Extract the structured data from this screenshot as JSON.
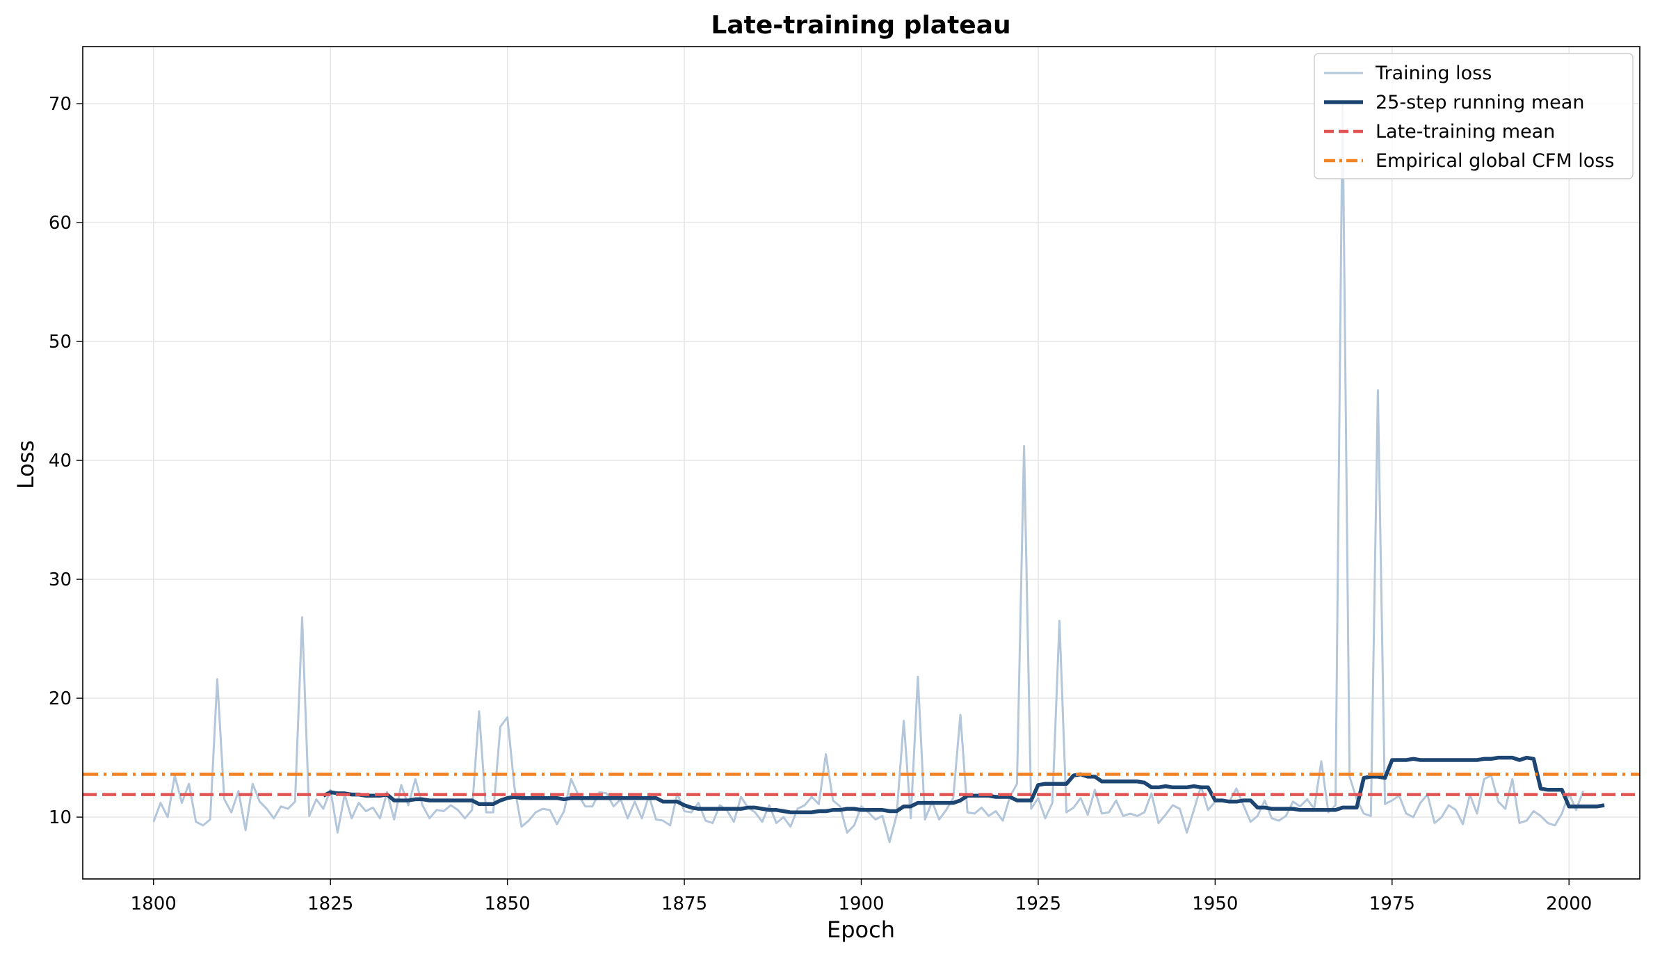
{
  "chart_data": {
    "type": "line",
    "title": "Late-training plateau",
    "xlabel": "Epoch",
    "ylabel": "Loss",
    "xlim": [
      1790,
      2010
    ],
    "ylim": [
      4.8,
      74.8
    ],
    "xticks": [
      1800,
      1825,
      1850,
      1875,
      1900,
      1925,
      1950,
      1975,
      2000
    ],
    "yticks": [
      10,
      20,
      30,
      40,
      50,
      60,
      70
    ],
    "grid": true,
    "legend_position": "top-right",
    "x_start": 1800,
    "series": [
      {
        "name": "Training loss",
        "color": "#b4c6da",
        "style": "solid",
        "values": [
          9.6,
          11.2,
          10.0,
          13.5,
          11.2,
          12.8,
          9.6,
          9.3,
          9.8,
          21.6,
          11.5,
          10.4,
          12.2,
          8.9,
          12.8,
          11.3,
          10.7,
          9.9,
          10.9,
          10.7,
          11.3,
          26.8,
          10.1,
          11.5,
          10.7,
          12.3,
          8.7,
          11.9,
          9.9,
          11.2,
          10.5,
          10.8,
          9.9,
          12.1,
          9.8,
          12.7,
          11.0,
          13.2,
          11.0,
          9.9,
          10.6,
          10.5,
          11.0,
          10.6,
          9.9,
          10.6,
          18.9,
          10.4,
          10.4,
          17.6,
          18.4,
          12.5,
          9.2,
          9.7,
          10.4,
          10.7,
          10.6,
          9.4,
          10.5,
          13.2,
          11.9,
          10.9,
          10.9,
          12.1,
          12.0,
          10.9,
          11.5,
          9.9,
          11.3,
          9.9,
          11.8,
          9.8,
          9.7,
          9.3,
          12.0,
          10.5,
          10.4,
          11.2,
          9.7,
          9.5,
          11.0,
          10.6,
          9.6,
          11.7,
          10.8,
          10.4,
          9.6,
          11.0,
          9.5,
          10.0,
          9.2,
          10.7,
          11.0,
          11.7,
          11.1,
          15.3,
          11.4,
          10.9,
          8.7,
          9.3,
          10.9,
          10.4,
          9.8,
          10.1,
          7.9,
          10.2,
          18.1,
          9.9,
          21.8,
          9.8,
          11.3,
          9.8,
          10.6,
          11.6,
          18.6,
          10.4,
          10.3,
          10.8,
          10.1,
          10.5,
          9.7,
          11.7,
          12.8,
          41.2,
          10.7,
          11.6,
          9.9,
          11.2,
          26.5,
          10.4,
          10.8,
          11.6,
          10.2,
          12.3,
          10.3,
          10.4,
          11.4,
          10.1,
          10.3,
          10.1,
          10.4,
          12.0,
          9.5,
          10.2,
          11.0,
          10.7,
          8.7,
          10.6,
          12.6,
          10.6,
          11.3,
          11.4,
          11.3,
          12.4,
          11.0,
          9.6,
          10.1,
          11.4,
          9.9,
          9.7,
          10.1,
          11.3,
          10.9,
          11.5,
          10.7,
          14.7,
          10.4,
          11.0,
          70.0,
          13.4,
          11.5,
          10.3,
          10.1,
          45.9,
          11.1,
          11.4,
          11.8,
          10.3,
          10.0,
          11.2,
          11.9,
          9.5,
          10.0,
          11.0,
          10.6,
          9.4,
          11.9,
          10.3,
          13.2,
          13.5,
          11.3,
          10.7,
          13.2,
          9.5,
          9.7,
          10.5,
          10.1,
          9.5,
          9.3,
          10.3,
          12.0,
          10.6,
          12.2
        ]
      },
      {
        "name": "25-step running mean",
        "color": "#1d4572",
        "style": "solid",
        "x_start": 1824,
        "values": [
          11.8,
          12.1,
          12.0,
          12.0,
          11.9,
          11.9,
          11.8,
          11.8,
          11.8,
          11.9,
          11.4,
          11.4,
          11.4,
          11.5,
          11.5,
          11.4,
          11.4,
          11.4,
          11.4,
          11.4,
          11.4,
          11.4,
          11.1,
          11.1,
          11.1,
          11.4,
          11.6,
          11.7,
          11.6,
          11.6,
          11.6,
          11.6,
          11.6,
          11.6,
          11.5,
          11.6,
          11.6,
          11.6,
          11.6,
          11.6,
          11.6,
          11.6,
          11.6,
          11.6,
          11.6,
          11.6,
          11.6,
          11.6,
          11.3,
          11.3,
          11.3,
          11.0,
          10.8,
          10.7,
          10.7,
          10.7,
          10.7,
          10.7,
          10.7,
          10.7,
          10.8,
          10.8,
          10.7,
          10.6,
          10.6,
          10.5,
          10.4,
          10.4,
          10.4,
          10.4,
          10.5,
          10.5,
          10.6,
          10.6,
          10.7,
          10.7,
          10.6,
          10.6,
          10.6,
          10.6,
          10.5,
          10.5,
          10.9,
          10.9,
          11.2,
          11.2,
          11.2,
          11.2,
          11.2,
          11.2,
          11.4,
          11.8,
          11.8,
          11.8,
          11.8,
          11.7,
          11.7,
          11.7,
          11.4,
          11.4,
          11.4,
          12.7,
          12.8,
          12.8,
          12.8,
          12.8,
          13.5,
          13.6,
          13.4,
          13.4,
          13.0,
          13.0,
          13.0,
          13.0,
          13.0,
          13.0,
          12.9,
          12.5,
          12.5,
          12.6,
          12.5,
          12.5,
          12.5,
          12.6,
          12.5,
          12.5,
          11.4,
          11.4,
          11.3,
          11.3,
          11.4,
          11.4,
          10.8,
          10.8,
          10.7,
          10.7,
          10.7,
          10.7,
          10.6,
          10.6,
          10.6,
          10.6,
          10.6,
          10.6,
          10.8,
          10.8,
          10.8,
          13.3,
          13.4,
          13.4,
          13.3,
          14.8,
          14.8,
          14.8,
          14.9,
          14.8,
          14.8,
          14.8,
          14.8,
          14.8,
          14.8,
          14.8,
          14.8,
          14.8,
          14.9,
          14.9,
          15.0,
          15.0,
          15.0,
          14.8,
          15.0,
          14.9,
          12.4,
          12.3,
          12.3,
          12.3,
          10.9,
          10.9,
          10.9,
          10.9,
          10.9,
          11.0
        ]
      },
      {
        "name": "Late-training mean",
        "color": "#e15555",
        "style": "dashed",
        "value": 11.9
      },
      {
        "name": "Empirical global CFM loss",
        "color": "#f28123",
        "style": "dashdot",
        "value": 13.6
      }
    ]
  }
}
